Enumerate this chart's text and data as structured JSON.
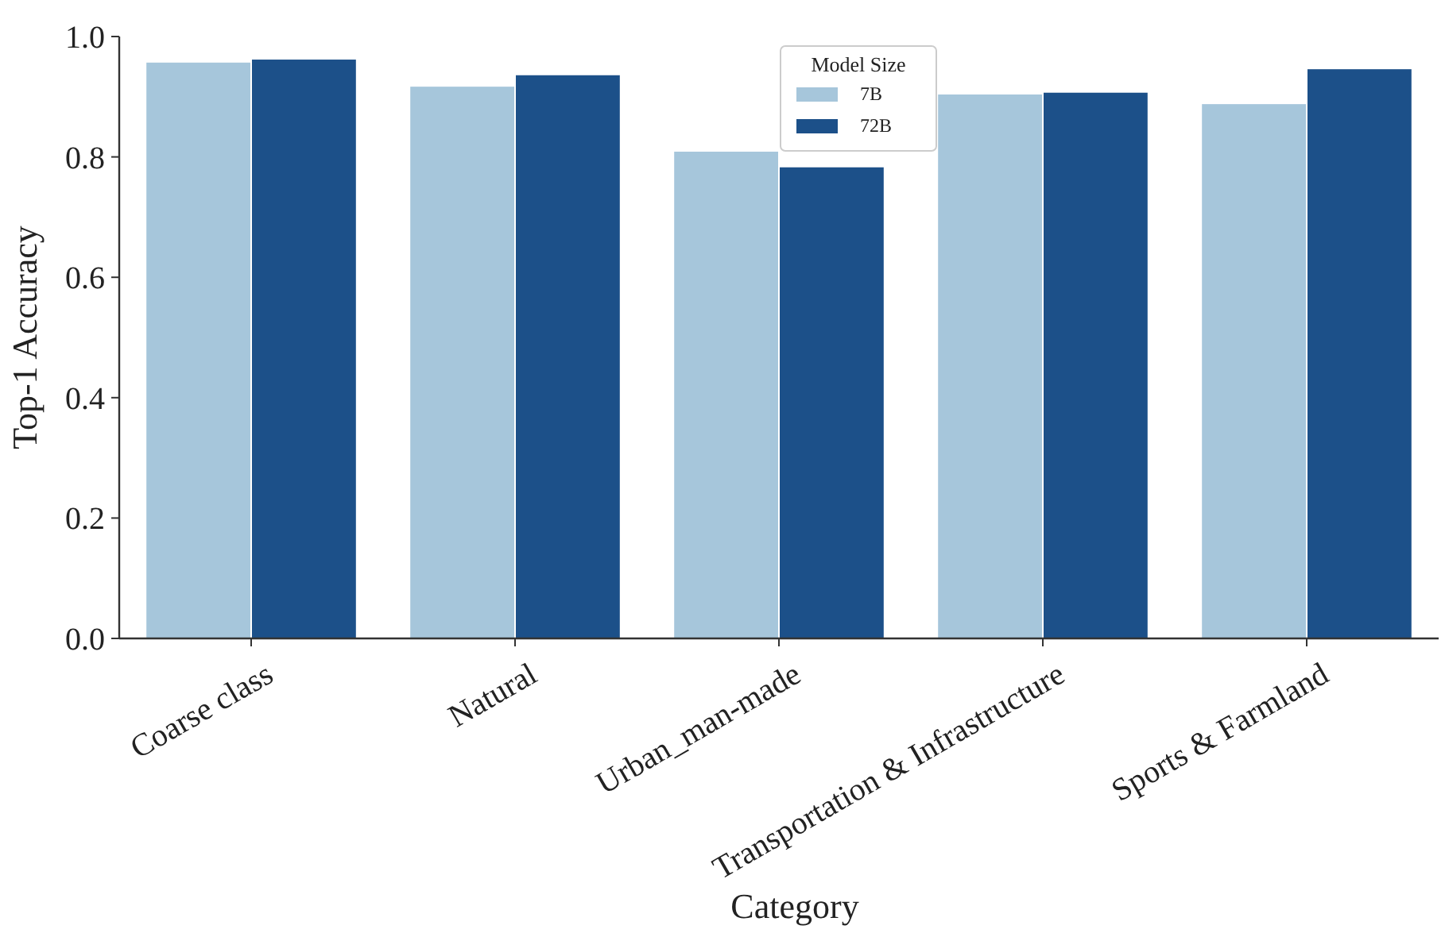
{
  "chart_data": {
    "type": "bar",
    "xlabel": "Category",
    "ylabel": "Top-1 Accuracy",
    "legend_title": "Model Size",
    "legend": "top",
    "categories": [
      "Coarse class",
      "Natural",
      "Urban_man-made",
      "Transportation & Infrastructure",
      "Sports & Farmland"
    ],
    "series": [
      {
        "name": "7B",
        "color": "#a6c6db",
        "values": [
          0.958,
          0.918,
          0.81,
          0.905,
          0.889
        ]
      },
      {
        "name": "72B",
        "color": "#1c5089",
        "values": [
          0.963,
          0.937,
          0.784,
          0.908,
          0.947
        ]
      }
    ],
    "ylim": [
      0,
      1
    ],
    "yticks": [
      {
        "value": 0,
        "label": "0.0"
      },
      {
        "value": 0.2,
        "label": "0.2"
      },
      {
        "value": 0.4,
        "label": "0.4"
      },
      {
        "value": 0.6,
        "label": "0.6"
      },
      {
        "value": 0.8,
        "label": "0.8"
      },
      {
        "value": 1,
        "label": "1.0"
      }
    ],
    "grid": false
  }
}
